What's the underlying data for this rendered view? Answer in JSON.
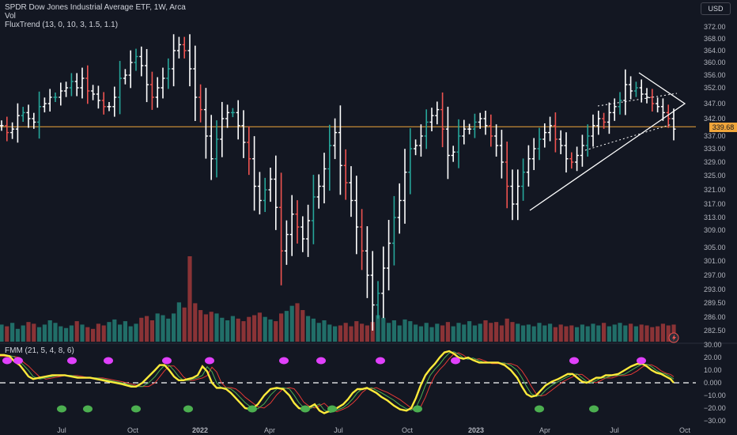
{
  "header": {
    "title": "SPDR Dow Jones Industrial Average ETF, 1W, Arca",
    "indicator_vol": "Vol",
    "indicator_flux": "FluxTrend (13, 0, 10, 3, 1.5, 1.1)",
    "oscillator": "FMM (21, 5, 4, 8, 6)",
    "currency": "USD",
    "last_price": "339.68"
  },
  "colors": {
    "background": "#131722",
    "bar_white": "#ffffff",
    "bar_teal": "#26a69a",
    "bar_red": "#ef5350",
    "vol_teal": "#216e68",
    "vol_red": "#8a3336",
    "price_line": "#f0a53a",
    "osc_yellow": "#ffeb3b",
    "osc_green": "#4caf50",
    "osc_red": "#e53935",
    "dot_magenta": "#e040fb",
    "dot_green": "#4caf50"
  },
  "chart_data": {
    "type": "ohlc",
    "price_axis": [
      "372.00",
      "368.00",
      "364.00",
      "360.00",
      "356.00",
      "352.00",
      "347.00",
      "342.00",
      "337.00",
      "333.00",
      "329.00",
      "325.00",
      "321.00",
      "317.00",
      "313.00",
      "309.00",
      "305.00",
      "301.00",
      "297.00",
      "293.00",
      "289.50",
      "286.00",
      "282.50"
    ],
    "osc_axis": [
      "30.00",
      "20.00",
      "10.00",
      "0.000",
      "−10.00",
      "−20.00",
      "−30.00"
    ],
    "time_axis": [
      "Jul",
      "Oct",
      "2022",
      "Apr",
      "Jul",
      "Oct",
      "2023",
      "Apr",
      "Jul",
      "Oct"
    ],
    "last_price": 339.68,
    "closes": [
      340,
      338,
      339,
      343,
      344,
      342,
      341,
      346,
      347,
      349,
      349,
      351,
      352,
      354,
      352,
      355,
      351,
      350,
      348,
      346,
      346,
      349,
      355,
      356,
      360,
      362,
      359,
      353,
      349,
      352,
      355,
      358,
      364,
      366,
      364,
      358,
      349,
      345,
      337,
      330,
      336,
      342,
      344,
      344,
      340,
      335,
      330,
      322,
      318,
      321,
      324,
      316,
      304,
      308,
      314,
      310,
      307,
      312,
      319,
      322,
      327,
      334,
      338,
      328,
      323,
      318,
      310,
      304,
      297,
      289,
      292,
      299,
      306,
      313,
      318,
      326,
      333,
      334,
      337,
      341,
      343,
      345,
      339,
      331,
      332,
      337,
      339,
      339,
      341,
      342,
      340,
      337,
      334,
      329,
      322,
      317,
      322,
      326,
      330,
      333,
      336,
      338,
      340,
      336,
      334,
      330,
      329,
      331,
      334,
      337,
      340,
      342,
      341,
      344,
      346,
      348,
      353,
      351,
      352,
      350,
      349,
      347,
      346,
      344,
      342,
      339
    ],
    "volume_rel": [
      0.2,
      0.18,
      0.22,
      0.15,
      0.19,
      0.23,
      0.21,
      0.17,
      0.2,
      0.25,
      0.22,
      0.18,
      0.16,
      0.19,
      0.24,
      0.2,
      0.17,
      0.15,
      0.21,
      0.19,
      0.23,
      0.26,
      0.2,
      0.24,
      0.18,
      0.21,
      0.28,
      0.3,
      0.25,
      0.33,
      0.31,
      0.27,
      0.33,
      0.46,
      0.4,
      1.0,
      0.45,
      0.37,
      0.32,
      0.35,
      0.33,
      0.28,
      0.25,
      0.3,
      0.27,
      0.24,
      0.29,
      0.31,
      0.34,
      0.29,
      0.26,
      0.24,
      0.33,
      0.36,
      0.42,
      0.45,
      0.37,
      0.3,
      0.27,
      0.22,
      0.25,
      0.2,
      0.18,
      0.19,
      0.22,
      0.18,
      0.24,
      0.21,
      0.19,
      0.23,
      0.31,
      0.28,
      0.22,
      0.25,
      0.19,
      0.26,
      0.24,
      0.2,
      0.18,
      0.22,
      0.17,
      0.21,
      0.19,
      0.23,
      0.18,
      0.22,
      0.2,
      0.24,
      0.19,
      0.21,
      0.25,
      0.22,
      0.23,
      0.19,
      0.27,
      0.23,
      0.21,
      0.19,
      0.2,
      0.18,
      0.22,
      0.19,
      0.21,
      0.17,
      0.2,
      0.18,
      0.19,
      0.17,
      0.2,
      0.18,
      0.21,
      0.19,
      0.22,
      0.18,
      0.2,
      0.22,
      0.19,
      0.21,
      0.18,
      0.2,
      0.19,
      0.17,
      0.18,
      0.21,
      0.19,
      0.2
    ],
    "osc_points": [
      [
        0,
        22
      ],
      [
        5,
        22
      ],
      [
        12,
        21
      ],
      [
        18,
        17
      ],
      [
        25,
        14
      ],
      [
        30,
        10
      ],
      [
        36,
        5
      ],
      [
        42,
        3
      ],
      [
        50,
        4
      ],
      [
        58,
        5
      ],
      [
        66,
        6
      ],
      [
        74,
        6
      ],
      [
        82,
        6
      ],
      [
        90,
        5
      ],
      [
        98,
        4
      ],
      [
        106,
        4
      ],
      [
        114,
        4
      ],
      [
        122,
        3
      ],
      [
        130,
        2
      ],
      [
        138,
        1
      ],
      [
        146,
        0
      ],
      [
        154,
        -1
      ],
      [
        160,
        -2
      ],
      [
        166,
        -3
      ],
      [
        172,
        -3
      ],
      [
        180,
        0
      ],
      [
        188,
        5
      ],
      [
        196,
        10
      ],
      [
        202,
        14
      ],
      [
        208,
        14
      ],
      [
        214,
        10
      ],
      [
        220,
        5
      ],
      [
        226,
        2
      ],
      [
        232,
        2
      ],
      [
        238,
        3
      ],
      [
        244,
        4
      ],
      [
        250,
        6
      ],
      [
        256,
        13
      ],
      [
        262,
        9
      ],
      [
        268,
        0
      ],
      [
        274,
        -4
      ],
      [
        280,
        -4
      ],
      [
        286,
        -5
      ],
      [
        292,
        -8
      ],
      [
        298,
        -12
      ],
      [
        304,
        -16
      ],
      [
        310,
        -20
      ],
      [
        318,
        -21
      ],
      [
        326,
        -17
      ],
      [
        334,
        -10
      ],
      [
        342,
        -5
      ],
      [
        350,
        -4
      ],
      [
        358,
        -5
      ],
      [
        366,
        -10
      ],
      [
        372,
        -16
      ],
      [
        378,
        -20
      ],
      [
        384,
        -21
      ],
      [
        392,
        -19
      ],
      [
        398,
        -17
      ],
      [
        404,
        -22
      ],
      [
        410,
        -24
      ],
      [
        418,
        -22
      ],
      [
        426,
        -20
      ],
      [
        434,
        -17
      ],
      [
        440,
        -13
      ],
      [
        446,
        -8
      ],
      [
        452,
        -5
      ],
      [
        458,
        -5
      ],
      [
        464,
        -4
      ],
      [
        470,
        -6
      ],
      [
        476,
        -8
      ],
      [
        482,
        -11
      ],
      [
        490,
        -14
      ],
      [
        498,
        -18
      ],
      [
        506,
        -21
      ],
      [
        514,
        -22
      ],
      [
        520,
        -20
      ],
      [
        526,
        -12
      ],
      [
        532,
        -2
      ],
      [
        538,
        6
      ],
      [
        544,
        11
      ],
      [
        550,
        15
      ],
      [
        556,
        20
      ],
      [
        562,
        24
      ],
      [
        568,
        25
      ],
      [
        574,
        23
      ],
      [
        580,
        20
      ],
      [
        586,
        19
      ],
      [
        592,
        20
      ],
      [
        598,
        18
      ],
      [
        606,
        16
      ],
      [
        614,
        16
      ],
      [
        622,
        16
      ],
      [
        630,
        16
      ],
      [
        638,
        14
      ],
      [
        646,
        10
      ],
      [
        654,
        4
      ],
      [
        660,
        -3
      ],
      [
        666,
        -9
      ],
      [
        672,
        -11
      ],
      [
        678,
        -10
      ],
      [
        684,
        -6
      ],
      [
        690,
        -2
      ],
      [
        698,
        1
      ],
      [
        706,
        3
      ],
      [
        712,
        5
      ],
      [
        718,
        7
      ],
      [
        724,
        7
      ],
      [
        730,
        4
      ],
      [
        736,
        1
      ],
      [
        742,
        0
      ],
      [
        748,
        2
      ],
      [
        754,
        4
      ],
      [
        760,
        4
      ],
      [
        766,
        6
      ],
      [
        774,
        6
      ],
      [
        782,
        7
      ],
      [
        790,
        10
      ],
      [
        798,
        13
      ],
      [
        806,
        15
      ],
      [
        812,
        15
      ],
      [
        818,
        13
      ],
      [
        824,
        10
      ],
      [
        830,
        8
      ],
      [
        836,
        7
      ],
      [
        842,
        5
      ],
      [
        848,
        3
      ],
      [
        852,
        0
      ]
    ],
    "top_dots_x": [
      9,
      23,
      91,
      137,
      211,
      265,
      359,
      406,
      481,
      576,
      726,
      811
    ],
    "bottom_dots_x": [
      78,
      111,
      172,
      238,
      319,
      386,
      420,
      528,
      682,
      751
    ]
  }
}
